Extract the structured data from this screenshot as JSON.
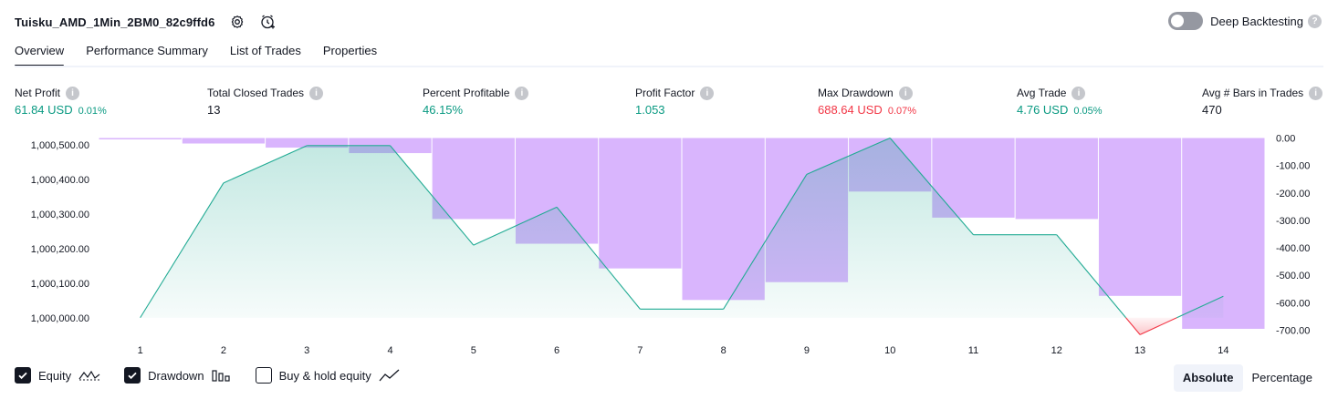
{
  "header": {
    "title": "Tuisku_AMD_1Min_2BM0_82c9ffd6",
    "deep_backtesting_label": "Deep Backtesting",
    "deep_backtesting_on": false
  },
  "tabs": [
    {
      "label": "Overview",
      "active": true
    },
    {
      "label": "Performance Summary",
      "active": false
    },
    {
      "label": "List of Trades",
      "active": false
    },
    {
      "label": "Properties",
      "active": false
    }
  ],
  "stats": [
    {
      "label": "Net Profit",
      "value": "61.84 USD",
      "pct": "0.01%",
      "color": "#089981"
    },
    {
      "label": "Total Closed Trades",
      "value": "13",
      "pct": "",
      "color": "#131722"
    },
    {
      "label": "Percent Profitable",
      "value": "46.15%",
      "pct": "",
      "color": "#089981"
    },
    {
      "label": "Profit Factor",
      "value": "1.053",
      "pct": "",
      "color": "#089981"
    },
    {
      "label": "Max Drawdown",
      "value": "688.64 USD",
      "pct": "0.07%",
      "color": "#f23645"
    },
    {
      "label": "Avg Trade",
      "value": "4.76 USD",
      "pct": "0.05%",
      "color": "#089981"
    },
    {
      "label": "Avg # Bars in Trades",
      "value": "470",
      "pct": "",
      "color": "#131722"
    }
  ],
  "chart_data": {
    "type": "line",
    "x": [
      1,
      2,
      3,
      4,
      5,
      6,
      7,
      8,
      9,
      10,
      11,
      12,
      13,
      14
    ],
    "x_tick_labels": [
      "1",
      "2",
      "3",
      "4",
      "5",
      "6",
      "7",
      "8",
      "9",
      "10",
      "11",
      "12",
      "13",
      "14"
    ],
    "series": [
      {
        "name": "Equity",
        "axis": "left",
        "type": "area",
        "values": [
          1000000,
          1000390,
          1000498,
          1000498,
          1000210,
          1000320,
          1000025,
          1000025,
          1000415,
          1000520,
          1000240,
          1000240,
          999951,
          1000062
        ]
      },
      {
        "name": "Drawdown",
        "axis": "right",
        "type": "bar",
        "values": [
          -5,
          -20,
          -35,
          -55,
          -295,
          -385,
          -475,
          -590,
          -525,
          -195,
          -290,
          -295,
          -575,
          -695
        ]
      },
      {
        "name": "Buy & hold equity",
        "visible": false
      }
    ],
    "left_axis": {
      "ticks": [
        "1,000,500.00",
        "1,000,400.00",
        "1,000,300.00",
        "1,000,200.00",
        "1,000,100.00",
        "1,000,000.00"
      ],
      "ylim": [
        999944,
        1000524
      ]
    },
    "right_axis": {
      "ticks": [
        "0.00",
        "-100.00",
        "-200.00",
        "-300.00",
        "-400.00",
        "-500.00",
        "-600.00",
        "-700.00"
      ],
      "ylim": [
        -725,
        5
      ]
    },
    "colors": {
      "equity_line": "#22ab94",
      "equity_line_negative": "#f23645",
      "equity_fill": "#22ab94",
      "drawdown_bar": "#d9b5fd"
    }
  },
  "legend": [
    {
      "label": "Equity",
      "checked": true,
      "icon": "equity-line-icon"
    },
    {
      "label": "Drawdown",
      "checked": true,
      "icon": "drawdown-bars-icon"
    },
    {
      "label": "Buy & hold equity",
      "checked": false,
      "icon": "buy-hold-line-icon"
    }
  ],
  "mode": {
    "absolute_label": "Absolute",
    "percentage_label": "Percentage",
    "active": "absolute"
  }
}
